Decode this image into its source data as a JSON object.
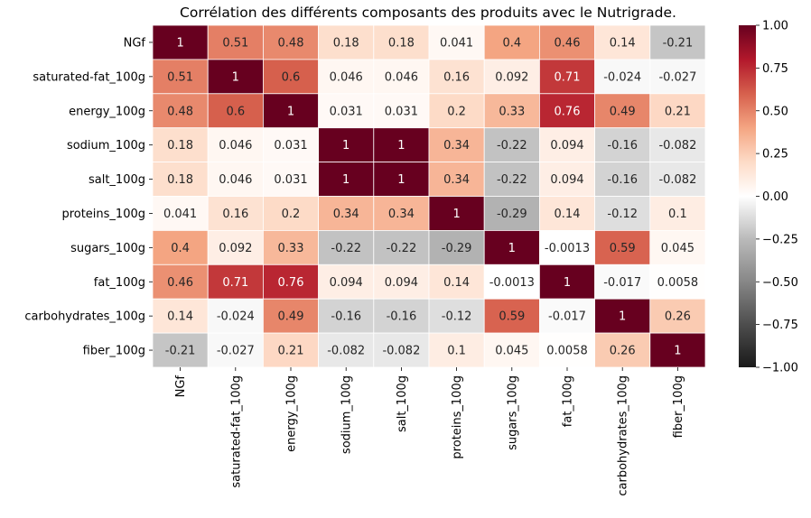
{
  "chart_data": {
    "type": "heatmap",
    "title": "Corrélation des différents composants des produits avec le Nutrigrade.",
    "rows": [
      "NGf",
      "saturated-fat_100g",
      "energy_100g",
      "sodium_100g",
      "salt_100g",
      "proteins_100g",
      "sugars_100g",
      "fat_100g",
      "carbohydrates_100g",
      "fiber_100g"
    ],
    "columns": [
      "NGf",
      "saturated-fat_100g",
      "energy_100g",
      "sodium_100g",
      "salt_100g",
      "proteins_100g",
      "sugars_100g",
      "fat_100g",
      "carbohydrates_100g",
      "fiber_100g"
    ],
    "values": [
      [
        1,
        0.51,
        0.48,
        0.18,
        0.18,
        0.041,
        0.4,
        0.46,
        0.14,
        -0.21
      ],
      [
        0.51,
        1,
        0.6,
        0.046,
        0.046,
        0.16,
        0.092,
        0.71,
        -0.024,
        -0.027
      ],
      [
        0.48,
        0.6,
        1,
        0.031,
        0.031,
        0.2,
        0.33,
        0.76,
        0.49,
        0.21
      ],
      [
        0.18,
        0.046,
        0.031,
        1,
        1,
        0.34,
        -0.22,
        0.094,
        -0.16,
        -0.082
      ],
      [
        0.18,
        0.046,
        0.031,
        1,
        1,
        0.34,
        -0.22,
        0.094,
        -0.16,
        -0.082
      ],
      [
        0.041,
        0.16,
        0.2,
        0.34,
        0.34,
        1,
        -0.29,
        0.14,
        -0.12,
        0.1
      ],
      [
        0.4,
        0.092,
        0.33,
        -0.22,
        -0.22,
        -0.29,
        1,
        -0.0013,
        0.59,
        0.045
      ],
      [
        0.46,
        0.71,
        0.76,
        0.094,
        0.094,
        0.14,
        -0.0013,
        1,
        -0.017,
        0.0058
      ],
      [
        0.14,
        -0.024,
        0.49,
        -0.16,
        -0.16,
        -0.12,
        0.59,
        -0.017,
        1,
        0.26
      ],
      [
        -0.21,
        -0.027,
        0.21,
        -0.082,
        -0.082,
        0.1,
        0.045,
        0.0058,
        0.26,
        1
      ]
    ],
    "value_labels": [
      [
        "1",
        "0.51",
        "0.48",
        "0.18",
        "0.18",
        "0.041",
        "0.4",
        "0.46",
        "0.14",
        "-0.21"
      ],
      [
        "0.51",
        "1",
        "0.6",
        "0.046",
        "0.046",
        "0.16",
        "0.092",
        "0.71",
        "-0.024",
        "-0.027"
      ],
      [
        "0.48",
        "0.6",
        "1",
        "0.031",
        "0.031",
        "0.2",
        "0.33",
        "0.76",
        "0.49",
        "0.21"
      ],
      [
        "0.18",
        "0.046",
        "0.031",
        "1",
        "1",
        "0.34",
        "-0.22",
        "0.094",
        "-0.16",
        "-0.082"
      ],
      [
        "0.18",
        "0.046",
        "0.031",
        "1",
        "1",
        "0.34",
        "-0.22",
        "0.094",
        "-0.16",
        "-0.082"
      ],
      [
        "0.041",
        "0.16",
        "0.2",
        "0.34",
        "0.34",
        "1",
        "-0.29",
        "0.14",
        "-0.12",
        "0.1"
      ],
      [
        "0.4",
        "0.092",
        "0.33",
        "-0.22",
        "-0.22",
        "-0.29",
        "1",
        "-0.0013",
        "0.59",
        "0.045"
      ],
      [
        "0.46",
        "0.71",
        "0.76",
        "0.094",
        "0.094",
        "0.14",
        "-0.0013",
        "1",
        "-0.017",
        "0.0058"
      ],
      [
        "0.14",
        "-0.024",
        "0.49",
        "-0.16",
        "-0.16",
        "-0.12",
        "0.59",
        "-0.017",
        "1",
        "0.26"
      ],
      [
        "-0.21",
        "-0.027",
        "0.21",
        "-0.082",
        "-0.082",
        "0.1",
        "0.045",
        "0.0058",
        "0.26",
        "1"
      ]
    ],
    "colormap": "RdGy_r",
    "vmin": -1,
    "vmax": 1,
    "colorbar_ticks": [
      1,
      0.75,
      0.5,
      0.25,
      0,
      -0.25,
      -0.5,
      -0.75,
      -1
    ],
    "colorbar_tick_labels": [
      "1.00",
      "0.75",
      "0.50",
      "0.25",
      "0.00",
      "−0.25",
      "−0.50",
      "−0.75",
      "−1.00"
    ],
    "colorbar_position": "right",
    "x_tick_rotation": "vertical",
    "colors": {
      "low": "#1a1a1a",
      "mid": "#ffffff",
      "high": "#67001f"
    }
  }
}
